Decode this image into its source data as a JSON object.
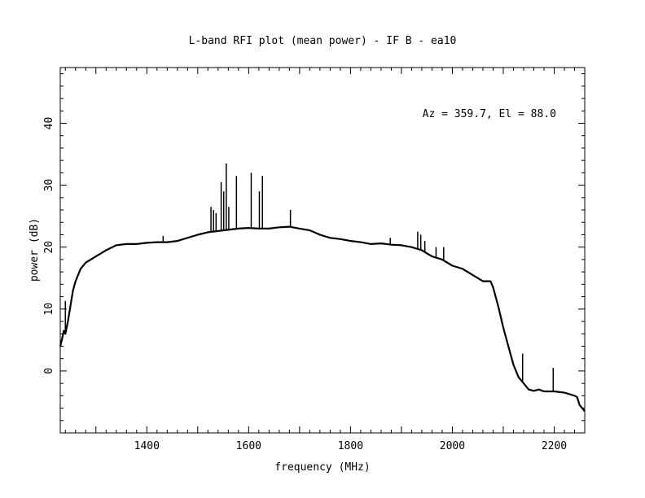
{
  "chart_data": {
    "type": "line",
    "title": "L-band RFI plot (mean power) - IF B - ea10",
    "xlabel": "frequency (MHz)",
    "ylabel": "power (dB)",
    "annotation": "Az = 359.7, El = 88.0",
    "xlim": [
      1230,
      2260
    ],
    "ylim": [
      -10,
      49
    ],
    "x_ticks": [
      1400,
      1600,
      1800,
      2000,
      2200
    ],
    "y_ticks": [
      0,
      10,
      20,
      30,
      40
    ],
    "grid": false,
    "line_color": "#000000",
    "series": [
      {
        "x": [
          1230,
          1233,
          1237,
          1240,
          1245,
          1250,
          1255,
          1260,
          1265,
          1270,
          1280,
          1290,
          1300,
          1320,
          1340,
          1360,
          1380,
          1400,
          1420,
          1440,
          1460,
          1480,
          1500,
          1520,
          1540,
          1560,
          1580,
          1600,
          1620,
          1640,
          1660,
          1680,
          1700,
          1720,
          1740,
          1760,
          1780,
          1800,
          1820,
          1840,
          1860,
          1880,
          1900,
          1920,
          1940,
          1960,
          1980,
          2000,
          2020,
          2040,
          2060,
          2075,
          2080,
          2090,
          2100,
          2110,
          2120,
          2130,
          2140,
          2150,
          2160,
          2170,
          2180,
          2200,
          2220,
          2240,
          2245,
          2250,
          2255,
          2260
        ],
        "values": [
          4.0,
          5.0,
          6.5,
          6.0,
          8.0,
          10.5,
          13.0,
          14.5,
          15.5,
          16.5,
          17.5,
          18.0,
          18.5,
          19.5,
          20.3,
          20.5,
          20.5,
          20.7,
          20.8,
          20.8,
          21.0,
          21.5,
          22.0,
          22.4,
          22.6,
          22.8,
          23.0,
          23.1,
          23.0,
          23.0,
          23.2,
          23.3,
          23.0,
          22.7,
          22.0,
          21.5,
          21.3,
          21.0,
          20.8,
          20.5,
          20.6,
          20.4,
          20.3,
          20.0,
          19.5,
          18.5,
          18.0,
          17.0,
          16.5,
          15.5,
          14.5,
          14.5,
          13.5,
          10.5,
          7.0,
          4.0,
          1.0,
          -1.0,
          -2.0,
          -3.0,
          -3.2,
          -3.0,
          -3.3,
          -3.3,
          -3.5,
          -4.0,
          -4.2,
          -5.5,
          -6.0,
          -6.5
        ]
      }
    ],
    "spikes": [
      {
        "x": 1240,
        "y": 11.3
      },
      {
        "x": 1432,
        "y": 21.8
      },
      {
        "x": 1526,
        "y": 26.5
      },
      {
        "x": 1531,
        "y": 26.0
      },
      {
        "x": 1536,
        "y": 25.5
      },
      {
        "x": 1546,
        "y": 30.5
      },
      {
        "x": 1551,
        "y": 29.0
      },
      {
        "x": 1556,
        "y": 33.5
      },
      {
        "x": 1561,
        "y": 26.5
      },
      {
        "x": 1576,
        "y": 31.5
      },
      {
        "x": 1605,
        "y": 32.0
      },
      {
        "x": 1621,
        "y": 29.0
      },
      {
        "x": 1627,
        "y": 31.5
      },
      {
        "x": 1682,
        "y": 26.0
      },
      {
        "x": 1878,
        "y": 21.5
      },
      {
        "x": 1932,
        "y": 22.5
      },
      {
        "x": 1938,
        "y": 22.0
      },
      {
        "x": 1946,
        "y": 21.0
      },
      {
        "x": 1968,
        "y": 20.0
      },
      {
        "x": 1983,
        "y": 20.0
      },
      {
        "x": 2138,
        "y": 2.8
      },
      {
        "x": 2198,
        "y": 0.5
      }
    ]
  }
}
